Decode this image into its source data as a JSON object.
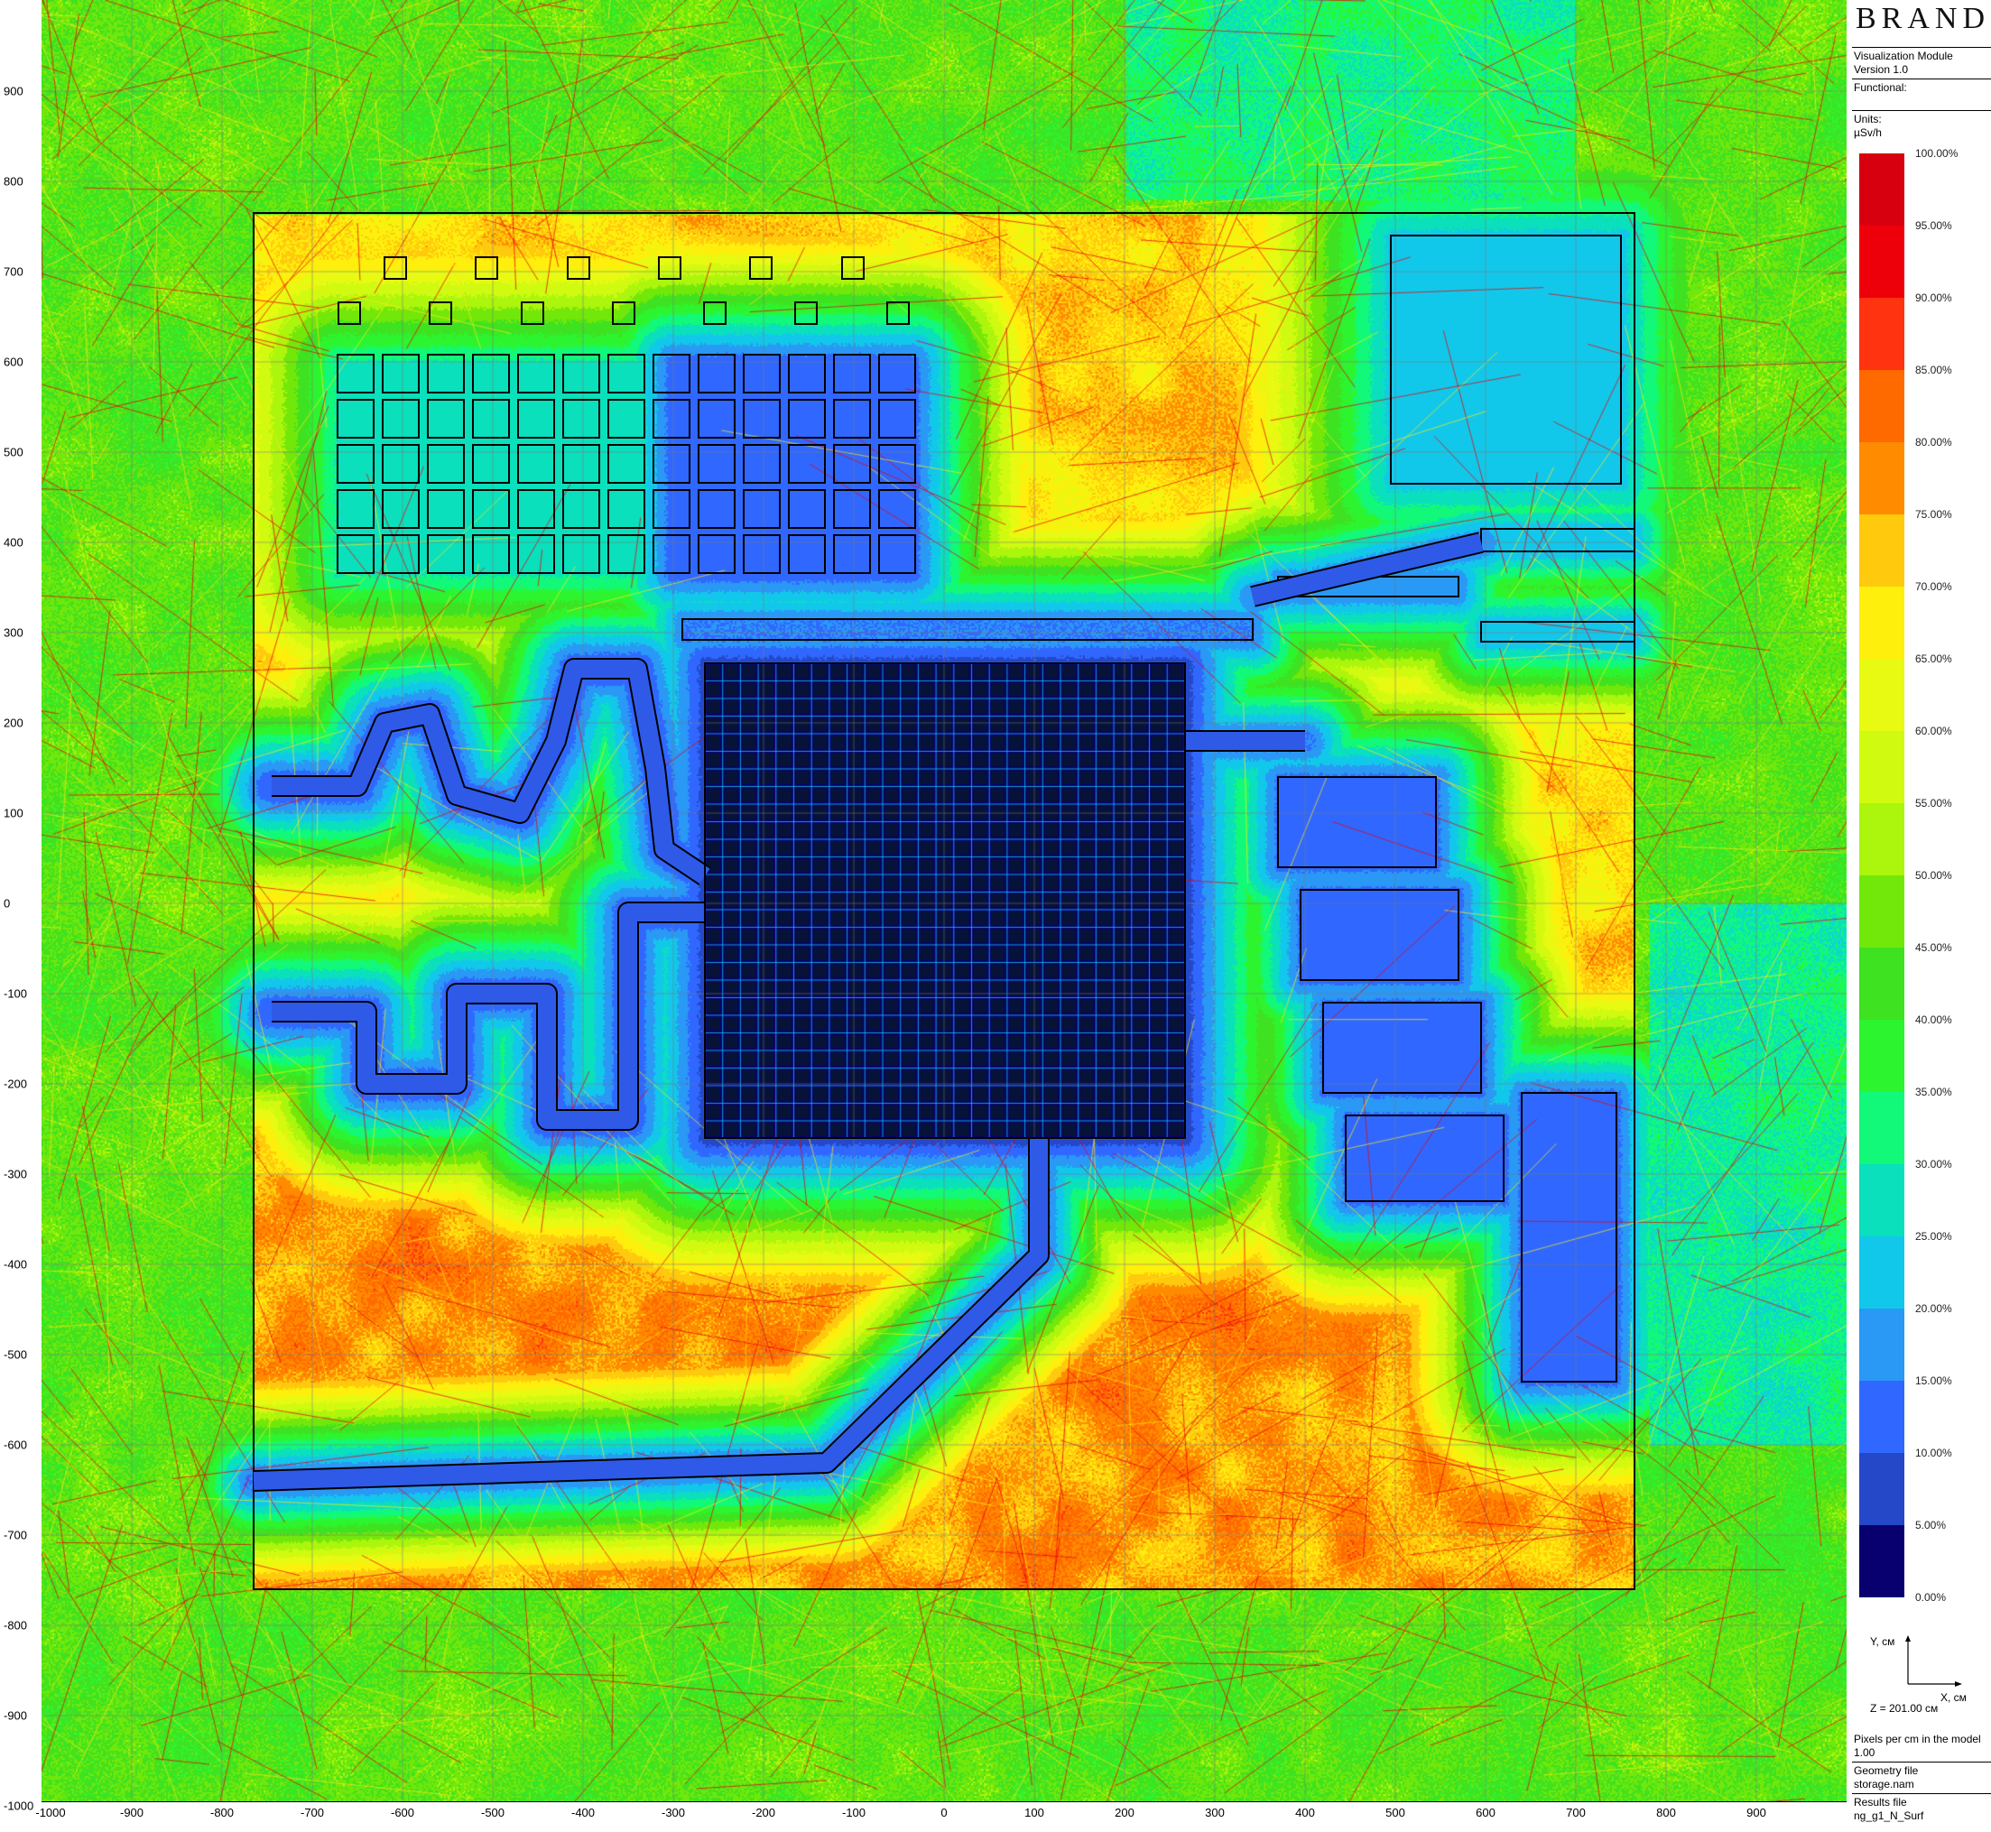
{
  "panel": {
    "brand": "BRAND",
    "module": "Visualization Module",
    "version": "Version 1.0",
    "functional_label": "Functional:",
    "units_label": "Units:",
    "units_value": "µSv/h",
    "y_axis_label": "Y, см",
    "x_axis_label": "X, см",
    "z_value": "Z = 201.00 см",
    "pixels_label": "Pixels per cm in the model",
    "pixels_value": "1.00",
    "geometry_label": "Geometry file",
    "geometry_value": "storage.nam",
    "results_label": "Results file",
    "results_value": "ng_g1_N_Surf"
  },
  "legend": {
    "labels": [
      "100.00%",
      "95.00%",
      "90.00%",
      "85.00%",
      "80.00%",
      "75.00%",
      "70.00%",
      "65.00%",
      "60.00%",
      "55.00%",
      "50.00%",
      "45.00%",
      "40.00%",
      "35.00%",
      "30.00%",
      "25.00%",
      "20.00%",
      "15.00%",
      "10.00%",
      "5.00%",
      "0.00%"
    ],
    "colors_top_to_bottom": [
      "#d7000f",
      "#ee000b",
      "#ff3310",
      "#ff6a00",
      "#ff8c00",
      "#ffc90e",
      "#ffef0c",
      "#e8fa12",
      "#d0fb10",
      "#acf50c",
      "#72e80a",
      "#3fe220",
      "#2cf530",
      "#12f97a",
      "#0ae0bc",
      "#12c8ea",
      "#2a98f5",
      "#3068ff",
      "#2448c8",
      "#08006e"
    ]
  },
  "chart_data": {
    "type": "heatmap",
    "title": "",
    "xlabel": "X, см",
    "ylabel": "Y, см",
    "xlim": [
      -1000,
      1000
    ],
    "ylim": [
      -1000,
      1000
    ],
    "x_ticks": [
      "-1000",
      "-900",
      "-800",
      "-700",
      "-600",
      "-500",
      "-400",
      "-300",
      "-200",
      "-100",
      "0",
      "100",
      "200",
      "300",
      "400",
      "500",
      "600",
      "700",
      "800",
      "900"
    ],
    "y_ticks": [
      "900",
      "800",
      "700",
      "600",
      "500",
      "400",
      "300",
      "200",
      "100",
      "0",
      "-100",
      "-200",
      "-300",
      "-400",
      "-500",
      "-600",
      "-700",
      "-800",
      "-900",
      "-1000"
    ],
    "grid": true,
    "value_unit": "% of max, µSv/h",
    "colorscale_range": [
      0,
      100
    ],
    "colorscale_step": 5
  }
}
